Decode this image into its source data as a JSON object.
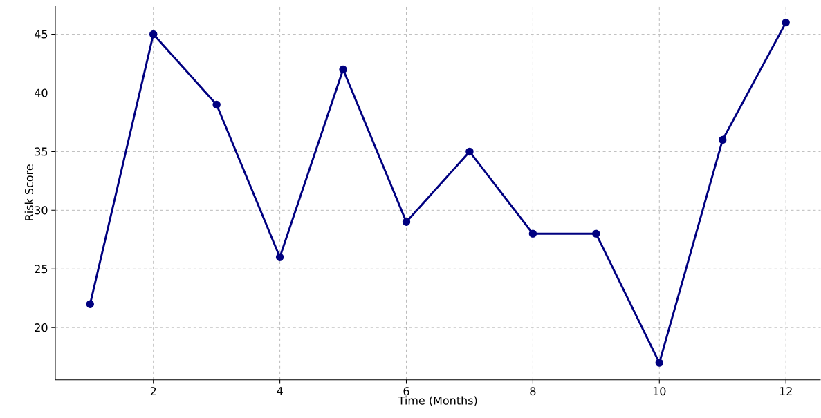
{
  "chart_data": {
    "type": "line",
    "xlabel": "Time (Months)",
    "ylabel": "Risk Score",
    "x": [
      1,
      2,
      3,
      4,
      5,
      6,
      7,
      8,
      9,
      10,
      11,
      12
    ],
    "series": [
      {
        "color": "#000080",
        "values": [
          22,
          45,
          39,
          26,
          42,
          29,
          35,
          28,
          28,
          17,
          36,
          46
        ]
      }
    ],
    "xlim": [
      0.45,
      12.55
    ],
    "ylim": [
      15.55,
      47.45
    ],
    "xticks": [
      2,
      4,
      6,
      8,
      10,
      12
    ],
    "yticks": [
      20,
      25,
      30,
      35,
      40,
      45
    ],
    "grid": true,
    "marker": "circle",
    "line_style": "solid"
  }
}
